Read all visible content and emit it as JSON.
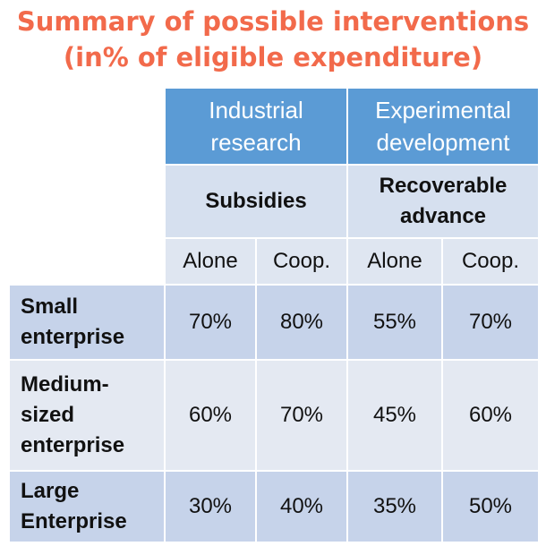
{
  "title": {
    "line1": "Summary of possible interventions",
    "line2": "(in% of eligible expenditure)"
  },
  "table": {
    "groups": [
      {
        "heading": "Industrial research",
        "support": "Subsidies"
      },
      {
        "heading": "Experimental development",
        "support": "Recoverable advance"
      }
    ],
    "subheaders": [
      "Alone",
      "Coop.",
      "Alone",
      "Coop."
    ],
    "rows": [
      {
        "label": "Small enterprise",
        "values": [
          "70%",
          "80%",
          "55%",
          "70%"
        ]
      },
      {
        "label": "Medium-sized enterprise",
        "values": [
          "60%",
          "70%",
          "45%",
          "60%"
        ]
      },
      {
        "label": "Large Enterprise",
        "values": [
          "30%",
          "40%",
          "35%",
          "50%"
        ]
      }
    ]
  },
  "colors": {
    "title": "#f26a4b",
    "header_blue": "#5b9bd5",
    "header_light": "#d6e0ef",
    "row_dark": "#c6d3ea",
    "row_light": "#e4e9f2"
  }
}
